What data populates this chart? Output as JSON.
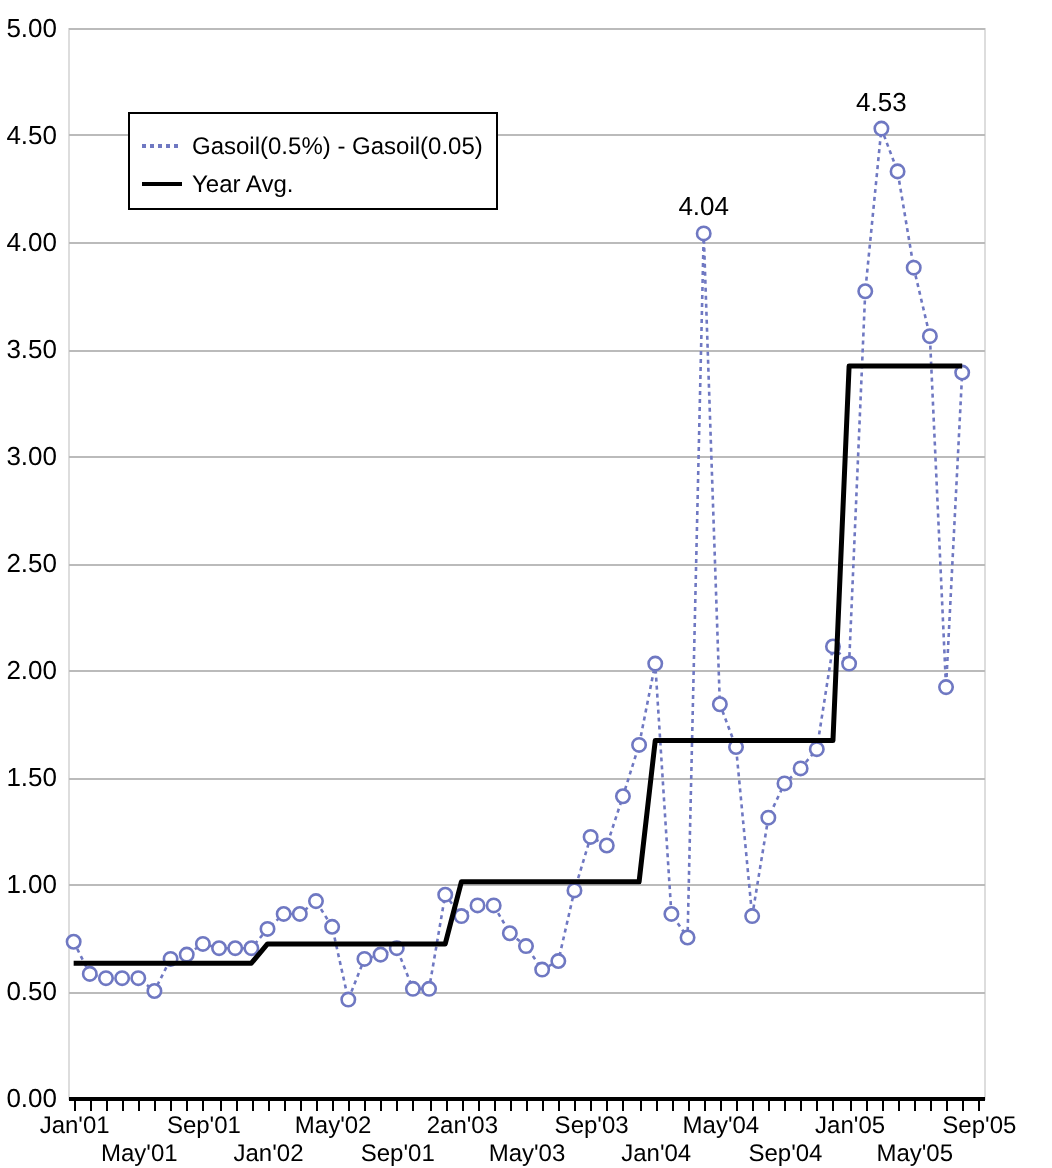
{
  "chart_data": {
    "type": "line",
    "categories": [
      "Jan'01",
      null,
      null,
      null,
      "May'01",
      null,
      null,
      null,
      "Sep'01",
      null,
      null,
      null,
      "Jan'02",
      null,
      null,
      null,
      "May'02",
      null,
      null,
      null,
      "Sep'01",
      null,
      null,
      null,
      "2an'03",
      null,
      null,
      null,
      "May'03",
      null,
      null,
      null,
      "Sep'03",
      null,
      null,
      null,
      "Jan'04",
      null,
      null,
      null,
      "May'04",
      null,
      null,
      null,
      "Sep'04",
      null,
      null,
      null,
      "Jan'05",
      null,
      null,
      null,
      "May'05",
      null,
      null,
      null,
      "Sep'05"
    ],
    "series": [
      {
        "name": "Gasoil(0.5%) - Gasoil(0.05)",
        "color": "#6f78c2",
        "marker": "circle",
        "line_style": "dotted",
        "values": [
          0.73,
          0.58,
          0.56,
          0.56,
          0.56,
          0.5,
          0.65,
          0.67,
          0.72,
          0.7,
          0.7,
          0.7,
          0.79,
          0.86,
          0.86,
          0.92,
          0.8,
          0.46,
          0.65,
          0.67,
          0.7,
          0.51,
          0.51,
          0.95,
          0.85,
          0.9,
          0.9,
          0.77,
          0.71,
          0.6,
          0.64,
          0.97,
          1.22,
          1.18,
          1.41,
          1.65,
          2.03,
          0.86,
          0.75,
          4.04,
          1.84,
          1.64,
          0.85,
          1.31,
          1.47,
          1.54,
          1.63,
          2.11,
          2.03,
          3.77,
          4.53,
          4.33,
          3.88,
          3.56,
          1.92,
          3.39,
          null
        ],
        "value_labels": [
          null,
          null,
          null,
          null,
          null,
          null,
          null,
          null,
          null,
          null,
          null,
          null,
          null,
          null,
          null,
          null,
          null,
          null,
          null,
          null,
          null,
          null,
          null,
          null,
          null,
          null,
          null,
          null,
          null,
          null,
          null,
          null,
          null,
          null,
          null,
          null,
          null,
          null,
          null,
          "4.04",
          null,
          null,
          null,
          null,
          null,
          null,
          null,
          null,
          null,
          null,
          "4.53",
          null,
          null,
          null,
          null,
          null,
          null
        ]
      },
      {
        "name": "Year Avg.",
        "color": "#000000",
        "marker": "none",
        "line_style": "solid",
        "values": [
          0.63,
          0.63,
          0.63,
          0.63,
          0.63,
          0.63,
          0.63,
          0.63,
          0.63,
          0.63,
          0.63,
          0.63,
          0.72,
          0.72,
          0.72,
          0.72,
          0.72,
          0.72,
          0.72,
          0.72,
          0.72,
          0.72,
          0.72,
          0.72,
          1.01,
          1.01,
          1.01,
          1.01,
          1.01,
          1.01,
          1.01,
          1.01,
          1.01,
          1.01,
          1.01,
          1.01,
          1.67,
          1.67,
          1.67,
          1.67,
          1.67,
          1.67,
          1.67,
          1.67,
          1.67,
          1.67,
          1.67,
          1.67,
          3.42,
          3.42,
          3.42,
          3.42,
          3.42,
          3.42,
          3.42,
          3.42,
          null
        ]
      }
    ],
    "ylim": [
      0,
      5
    ],
    "yticks": [
      {
        "value": 0,
        "label": "0.00"
      },
      {
        "value": 0.5,
        "label": "0.50"
      },
      {
        "value": 1,
        "label": "1.00"
      },
      {
        "value": 1.5,
        "label": "1.50"
      },
      {
        "value": 2,
        "label": "2.00"
      },
      {
        "value": 2.5,
        "label": "2.50"
      },
      {
        "value": 3,
        "label": "3.00"
      },
      {
        "value": 3.5,
        "label": "3.50"
      },
      {
        "value": 4,
        "label": "4.00"
      },
      {
        "value": 4.5,
        "label": "4.50"
      },
      {
        "value": 5,
        "label": "5.00"
      }
    ],
    "grid": "y",
    "legend": "top left"
  }
}
